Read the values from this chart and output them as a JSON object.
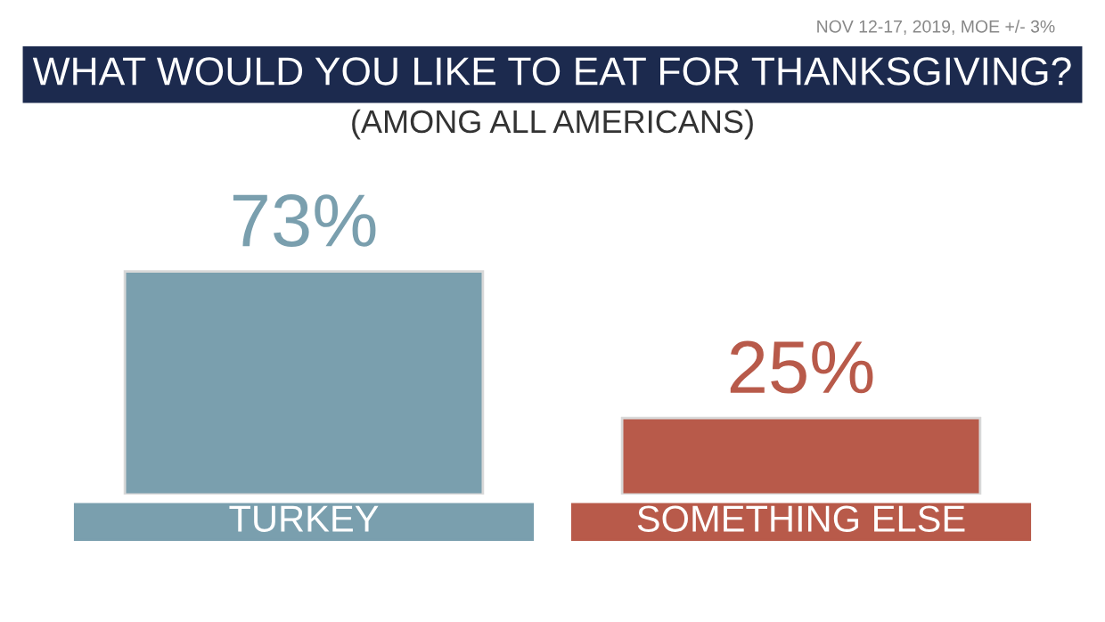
{
  "chart_data": {
    "type": "bar",
    "title": "WHAT WOULD YOU LIKE TO EAT FOR THANKSGIVING?",
    "subtitle": "(AMONG ALL AMERICANS)",
    "annotations": [
      "NOV 12-17, 2019, MOE +/- 3%"
    ],
    "categories": [
      "TURKEY",
      "SOMETHING ELSE"
    ],
    "values": [
      73,
      25
    ],
    "value_labels": [
      "73%",
      "25%"
    ],
    "colors": [
      "#7a9fae",
      "#b85a4a"
    ]
  }
}
